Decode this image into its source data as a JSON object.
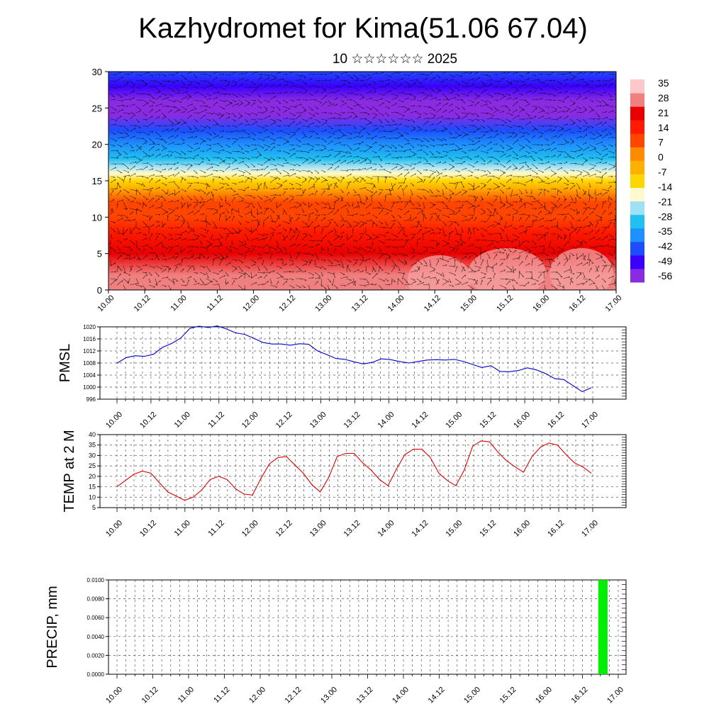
{
  "header": {
    "title": "Kazhydromet for Kima(51.06 67.04)",
    "subtitle": "10 ☆☆☆☆☆☆ 2025"
  },
  "time_labels": [
    "10.00",
    "10.12",
    "11.00",
    "11.12",
    "12.00",
    "12.12",
    "13.00",
    "13.12",
    "14.00",
    "14.12",
    "15.00",
    "15.12",
    "16.00",
    "16.12",
    "17.00"
  ],
  "chart_data": [
    {
      "id": "cross-section",
      "type": "heatmap",
      "title": "",
      "xlabel": "",
      "ylabel": "",
      "x_tick_labels": [
        "10.00",
        "10.12",
        "11.00",
        "11.12",
        "12.00",
        "12.12",
        "13.00",
        "13.12",
        "14.00",
        "14.12",
        "15.00",
        "15.12",
        "16.00",
        "16.12",
        "17.00"
      ],
      "y_ticks": [
        0,
        5,
        10,
        15,
        20,
        25,
        30
      ],
      "ylim": [
        0,
        30
      ],
      "colorbar_labels": [
        "35",
        "28",
        "21",
        "14",
        "7",
        "0",
        "-7",
        "-14",
        "-21",
        "-28",
        "-35",
        "-42",
        "-49",
        "-56"
      ],
      "colorscale": [
        "#8a2be2",
        "#3a00ff",
        "#1e4cff",
        "#1e90ff",
        "#20c0f0",
        "#9ee0f5",
        "#fffacd",
        "#ffd700",
        "#ffb000",
        "#ff8c00",
        "#ff4500",
        "#ff1a00",
        "#e80000",
        "#f08080",
        "#ffc8c8"
      ],
      "profile_y": [
        0,
        2,
        5,
        8,
        10,
        12,
        14,
        15,
        16,
        17,
        18,
        20,
        22,
        24,
        26,
        28,
        30
      ],
      "profile_value": [
        30,
        27,
        22,
        14,
        10,
        6,
        -2,
        -10,
        -20,
        -26,
        -32,
        -40,
        -48,
        -58,
        -55,
        -50,
        -47
      ],
      "wind_vectors": "shown"
    },
    {
      "id": "pmsl",
      "type": "line",
      "title": "",
      "xlabel": "",
      "ylabel": "PMSL",
      "ylim": [
        996,
        1020
      ],
      "y_ticks": [
        996,
        1000,
        1004,
        1008,
        1012,
        1016,
        1020
      ],
      "x_tick_labels": [
        "10.00",
        "10.12",
        "11.00",
        "11.12",
        "12.00",
        "12.12",
        "13.00",
        "13.12",
        "14.00",
        "14.12",
        "15.00",
        "15.12",
        "16.00",
        "16.12",
        "17.00"
      ],
      "line_color": "#0000cc",
      "grid": true,
      "series": [
        {
          "values": [
            1007.9,
            1009.8,
            1010.4,
            1010.2,
            1010.9,
            1013.2,
            1014.5,
            1016.3,
            1019.5,
            1020.2,
            1019.8,
            1020.3,
            1019.3,
            1018.0,
            1017.5,
            1016.2,
            1014.8,
            1014.3,
            1014.3,
            1013.9,
            1014.4,
            1014.2,
            1012.0,
            1010.8,
            1009.5,
            1009.2,
            1008.4,
            1007.7,
            1008.2,
            1009.4,
            1009.1,
            1008.5,
            1008.0,
            1008.5,
            1009.0,
            1009.1,
            1009.0,
            1009.2,
            1008.5,
            1007.5,
            1006.5,
            1007.1,
            1005.2,
            1005.1,
            1005.5,
            1006.4,
            1005.7,
            1004.5,
            1002.8,
            1002.5,
            1000.5,
            998.5,
            999.8
          ]
        }
      ]
    },
    {
      "id": "temp2m",
      "type": "line",
      "title": "",
      "xlabel": "",
      "ylabel": "TEMP at 2 M",
      "ylim": [
        5,
        40
      ],
      "y_ticks": [
        5,
        10,
        15,
        20,
        25,
        30,
        35,
        40
      ],
      "x_tick_labels": [
        "10.00",
        "10.12",
        "11.00",
        "11.12",
        "12.00",
        "12.12",
        "13.00",
        "13.12",
        "14.00",
        "14.12",
        "15.00",
        "15.12",
        "16.00",
        "16.12",
        "17.00"
      ],
      "line_color": "#dd0000",
      "grid": true,
      "series": [
        {
          "values": [
            15.0,
            18.0,
            21.0,
            22.5,
            21.5,
            17.0,
            12.5,
            10.5,
            8.5,
            10.0,
            13.5,
            18.5,
            20.0,
            18.5,
            14.0,
            11.5,
            11.0,
            19.0,
            26.0,
            29.0,
            29.5,
            25.5,
            21.5,
            16.0,
            12.5,
            19.5,
            29.5,
            31.0,
            31.0,
            26.5,
            23.0,
            18.5,
            15.5,
            23.5,
            30.5,
            33.0,
            33.0,
            29.0,
            21.5,
            18.0,
            15.5,
            23.0,
            34.5,
            37.0,
            36.5,
            31.5,
            27.5,
            24.5,
            22.0,
            29.5,
            34.0,
            36.0,
            35.0,
            30.5,
            26.5,
            24.5,
            21.5
          ]
        }
      ]
    },
    {
      "id": "precip",
      "type": "bar",
      "title": "",
      "xlabel": "",
      "ylabel": "PRECIP, mm",
      "ylim": [
        0,
        0.01
      ],
      "y_tick_labels": [
        "0.0000",
        "0.0020",
        "0.0040",
        "0.0060",
        "0.0080",
        "0.0100"
      ],
      "x_tick_labels": [
        "10.00",
        "10.12",
        "11.00",
        "11.12",
        "12.00",
        "12.12",
        "13.00",
        "13.12",
        "14.00",
        "14.12",
        "15.00",
        "15.12",
        "16.00",
        "16.12",
        "17.00"
      ],
      "bar_color": "#00ee00",
      "grid": true,
      "series": [
        {
          "values": [
            0,
            0,
            0,
            0,
            0,
            0,
            0,
            0,
            0,
            0,
            0,
            0,
            0,
            0,
            0,
            0,
            0,
            0,
            0,
            0,
            0,
            0,
            0,
            0,
            0,
            0,
            0,
            0,
            0,
            0,
            0,
            0,
            0,
            0,
            0,
            0,
            0,
            0,
            0,
            0,
            0,
            0,
            0,
            0,
            0,
            0,
            0,
            0,
            0,
            0,
            0,
            0,
            0,
            0.01,
            0,
            0
          ]
        }
      ]
    }
  ]
}
